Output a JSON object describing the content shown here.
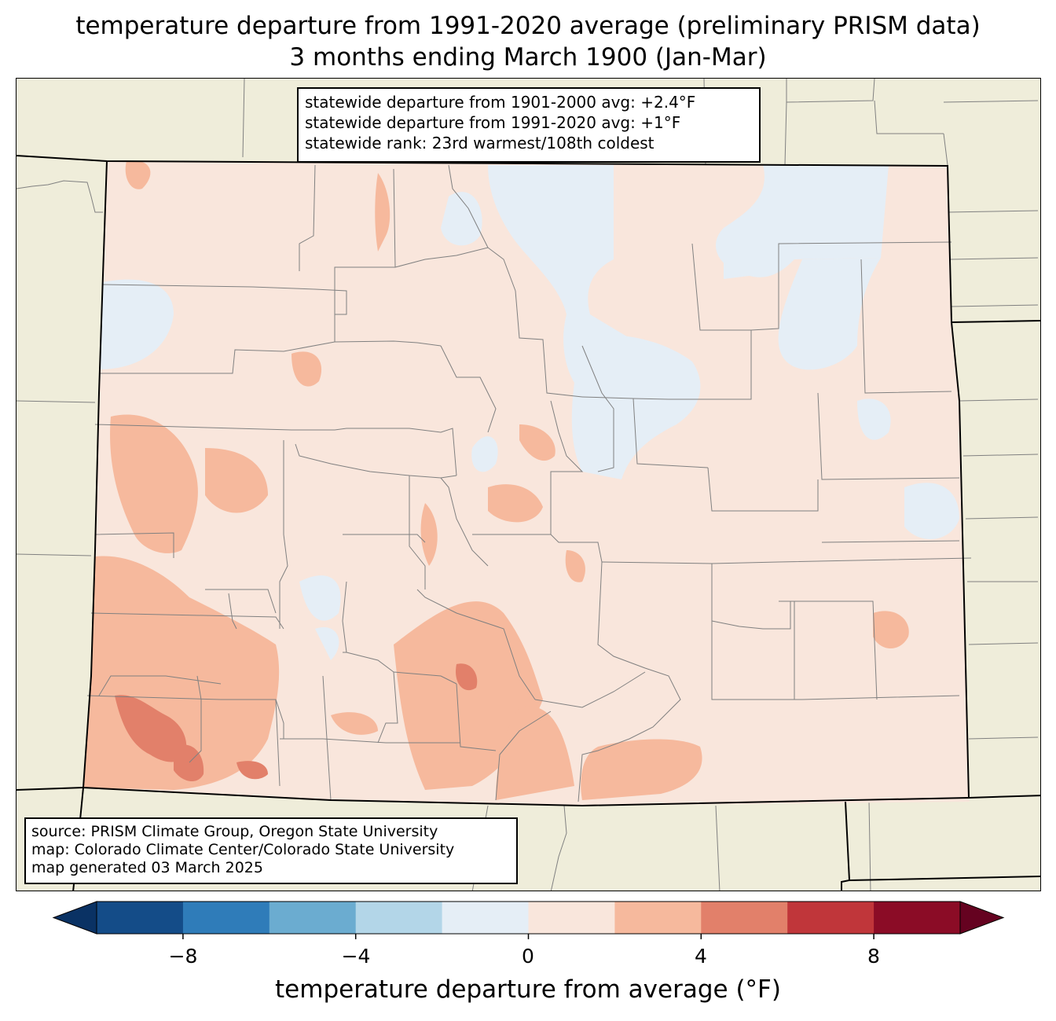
{
  "title_line1": "temperature departure from 1991-2020 average (preliminary PRISM data)",
  "title_line2": "3 months ending March 1900 (Jan-Mar)",
  "stats": {
    "line1": "statewide departure from 1901-2000 avg: +2.4°F",
    "line2": "statewide departure from 1991-2020 avg: +1°F",
    "line3": "statewide rank: 23rd warmest/108th coldest"
  },
  "source": {
    "line1": "source: PRISM Climate Group, Oregon State University",
    "line2": "map: Colorado Climate Center/Colorado State University",
    "line3": "map generated 03 March 2025"
  },
  "colorbar": {
    "label": "temperature departure from average (°F)",
    "ticks": [
      "−8",
      "−4",
      "0",
      "4",
      "8"
    ],
    "levels": [
      -10,
      -8,
      -6,
      -4,
      -2,
      0,
      2,
      4,
      6,
      8,
      10
    ],
    "colors": [
      "#144c88",
      "#2f7cb9",
      "#6bacd0",
      "#b3d6e8",
      "#e5eef6",
      "#f9e6dc",
      "#f6b99d",
      "#e2806a",
      "#c0363a",
      "#8b0c26"
    ],
    "under_color": "#0a3264",
    "over_color": "#650220"
  },
  "colors": {
    "land": "#efedda",
    "state_border": "#000000",
    "county_border": "#808080"
  }
}
